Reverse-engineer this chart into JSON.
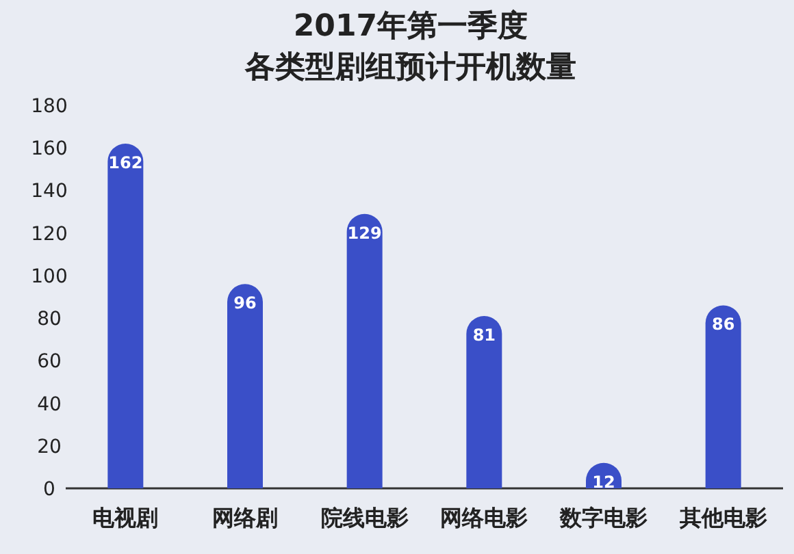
{
  "chart_data": {
    "type": "bar",
    "title": "2017年第一季度",
    "subtitle": "各类型剧组预计开机数量",
    "categories": [
      "电视剧",
      "网络剧",
      "院线电影",
      "网络电影",
      "数字电影",
      "其他电影"
    ],
    "values": [
      162,
      96,
      129,
      81,
      12,
      86
    ],
    "color": "#3a4fc8",
    "ylim": [
      0,
      180
    ],
    "yticks": [
      0,
      20,
      40,
      60,
      80,
      100,
      120,
      140,
      160,
      180
    ],
    "data_labels": true
  }
}
